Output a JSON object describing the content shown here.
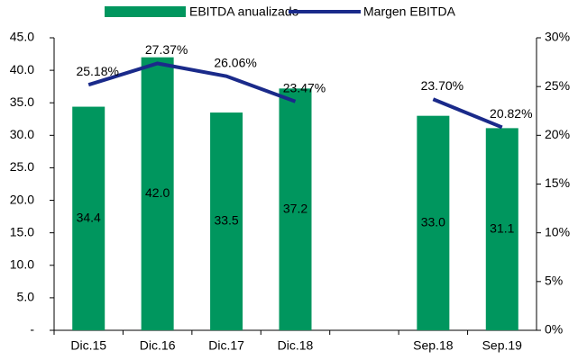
{
  "chart_data": {
    "type": "bar",
    "categories": [
      "Dic.15",
      "Dic.16",
      "Dic.17",
      "Dic.18",
      null,
      "Sep.18",
      "Sep.19"
    ],
    "series": [
      {
        "name": "EBITDA anualizado",
        "type": "bar",
        "color": "#00965e",
        "values": [
          34.4,
          42.0,
          33.5,
          37.2,
          null,
          33.0,
          31.1
        ],
        "value_labels": [
          "34.4",
          "42.0",
          "33.5",
          "37.2",
          null,
          "33.0",
          "31.1"
        ]
      },
      {
        "name": "Margen EBITDA",
        "type": "line",
        "axis": "y2",
        "color": "#1a2a8a",
        "values": [
          25.18,
          27.37,
          26.06,
          23.47,
          null,
          23.7,
          20.82
        ],
        "value_labels": [
          "25.18%",
          "27.37%",
          "26.06%",
          "23.47%",
          null,
          "23.70%",
          "20.82%"
        ]
      }
    ],
    "ylim": [
      0,
      45
    ],
    "yticks": [
      {
        "value": 0,
        "label": "-"
      },
      {
        "value": 5,
        "label": "5.0"
      },
      {
        "value": 10,
        "label": "10.0"
      },
      {
        "value": 15,
        "label": "15.0"
      },
      {
        "value": 20,
        "label": "20.0"
      },
      {
        "value": 25,
        "label": "25.0"
      },
      {
        "value": 30,
        "label": "30.0"
      },
      {
        "value": 35,
        "label": "35.0"
      },
      {
        "value": 40,
        "label": "40.0"
      },
      {
        "value": 45,
        "label": "45.0"
      }
    ],
    "y2lim": [
      0,
      30
    ],
    "y2ticks": [
      {
        "value": 0,
        "label": "0%"
      },
      {
        "value": 5,
        "label": "5%"
      },
      {
        "value": 10,
        "label": "10%"
      },
      {
        "value": 15,
        "label": "15%"
      },
      {
        "value": 20,
        "label": "20%"
      },
      {
        "value": 25,
        "label": "25%"
      },
      {
        "value": 30,
        "label": "30%"
      }
    ]
  }
}
